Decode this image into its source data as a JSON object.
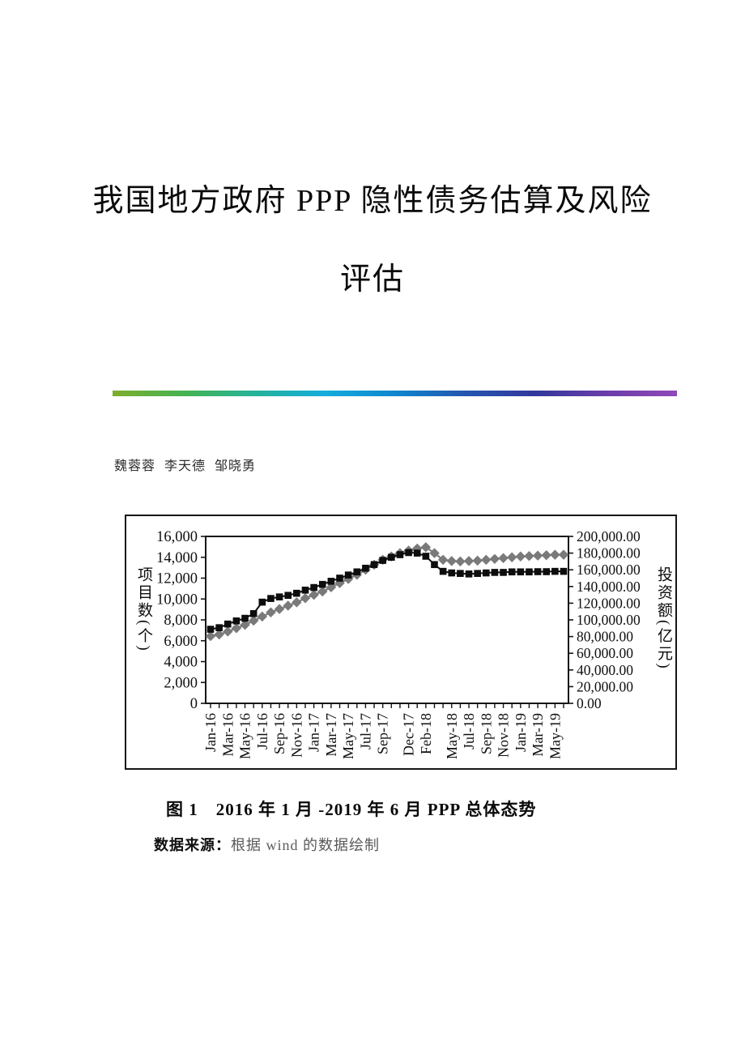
{
  "document": {
    "title_line1": "我国地方政府 PPP 隐性债务估算及风险",
    "title_line2": "评估",
    "authors": "魏蓉蓉 李天德 邹晓勇",
    "figure_caption": "图 1　2016 年 1 月 -2019 年 6 月 PPP 总体态势",
    "source_label": "数据来源：",
    "source_text": "根据 wind 的数据绘制"
  },
  "colors": {
    "divider_gradient": [
      "#7fae2d",
      "#46b350",
      "#25b398",
      "#15addc",
      "#0f86cf",
      "#2456af",
      "#32389b",
      "#6b3daa",
      "#9048b8"
    ],
    "series_project_count": "#0d0d0d",
    "series_investment": "#7a7a7a",
    "axis": "#161616"
  },
  "chart_data": {
    "type": "line",
    "title": "",
    "xlabel": "",
    "x": [
      "Jan-16",
      "Feb-16",
      "Mar-16",
      "Apr-16",
      "May-16",
      "Jun-16",
      "Jul-16",
      "Aug-16",
      "Sep-16",
      "Oct-16",
      "Nov-16",
      "Dec-16",
      "Jan-17",
      "Feb-17",
      "Mar-17",
      "Apr-17",
      "May-17",
      "Jun-17",
      "Jul-17",
      "Aug-17",
      "Sep-17",
      "Oct-17",
      "Nov-17",
      "Dec-17",
      "Jan-18",
      "Feb-18",
      "Mar-18",
      "Apr-18",
      "May-18",
      "Jun-18",
      "Jul-18",
      "Aug-18",
      "Sep-18",
      "Oct-18",
      "Nov-18",
      "Dec-18",
      "Jan-19",
      "Feb-19",
      "Mar-19",
      "Apr-19",
      "May-19",
      "Jun-19"
    ],
    "series": [
      {
        "name": "项目数",
        "axis": "left",
        "marker": "square",
        "color": "#0d0d0d",
        "values": [
          7100,
          7250,
          7600,
          7900,
          8150,
          8600,
          9700,
          10050,
          10200,
          10350,
          10550,
          10850,
          11100,
          11400,
          11700,
          12000,
          12300,
          12600,
          12950,
          13300,
          13700,
          14000,
          14250,
          14450,
          14400,
          14100,
          13300,
          12650,
          12500,
          12450,
          12400,
          12450,
          12500,
          12550,
          12550,
          12600,
          12600,
          12600,
          12620,
          12620,
          12650,
          12650
        ]
      },
      {
        "name": "投资额",
        "axis": "right",
        "marker": "diamond",
        "color": "#7a7a7a",
        "values": [
          80500,
          82500,
          86000,
          90000,
          94000,
          99000,
          104000,
          109000,
          113000,
          117000,
          121000,
          126000,
          130000,
          134000,
          139000,
          144000,
          149000,
          154000,
          160000,
          166000,
          172000,
          176000,
          180000,
          183000,
          185500,
          187000,
          180000,
          172000,
          170500,
          170000,
          170500,
          171000,
          172000,
          173000,
          174000,
          175000,
          176000,
          176500,
          177000,
          177500,
          178000,
          178000
        ]
      }
    ],
    "left_axis": {
      "label": "项目数(个)",
      "range": [
        0,
        16000
      ],
      "step": 2000,
      "tick_labels": [
        "0",
        "2,000",
        "4,000",
        "6,000",
        "8,000",
        "10,000",
        "12,000",
        "14,000",
        "16,000"
      ]
    },
    "right_axis": {
      "label": "投资额(亿元)",
      "range": [
        0,
        200000
      ],
      "step": 20000,
      "tick_labels": [
        "0.00",
        "20,000.00",
        "40,000.00",
        "60,000.00",
        "80,000.00",
        "100,000.00",
        "120,000.00",
        "140,000.00",
        "160,000.00",
        "180,000.00",
        "200,000.00"
      ]
    },
    "x_tick_labels": [
      {
        "label": "Jan-16",
        "month": 0
      },
      {
        "label": "Mar-16",
        "month": 2
      },
      {
        "label": "May-16",
        "month": 4
      },
      {
        "label": "Jul-16",
        "month": 6
      },
      {
        "label": "Sep-16",
        "month": 8
      },
      {
        "label": "Nov-16",
        "month": 10
      },
      {
        "label": "Jan-17",
        "month": 12
      },
      {
        "label": "Mar-17",
        "month": 14
      },
      {
        "label": "May-17",
        "month": 16
      },
      {
        "label": "Jul-17",
        "month": 18
      },
      {
        "label": "Sep-17",
        "month": 20
      },
      {
        "label": "Dec-17",
        "month": 23
      },
      {
        "label": "Feb-18",
        "month": 25
      },
      {
        "label": "May-18",
        "month": 28
      },
      {
        "label": "Jul-18",
        "month": 30
      },
      {
        "label": "Sep-18",
        "month": 32
      },
      {
        "label": "Nov-18",
        "month": 34
      },
      {
        "label": "Jan-19",
        "month": 36
      },
      {
        "label": "Mar-19",
        "month": 38
      },
      {
        "label": "May-19",
        "month": 40
      }
    ],
    "grid": false,
    "legend": "none"
  }
}
